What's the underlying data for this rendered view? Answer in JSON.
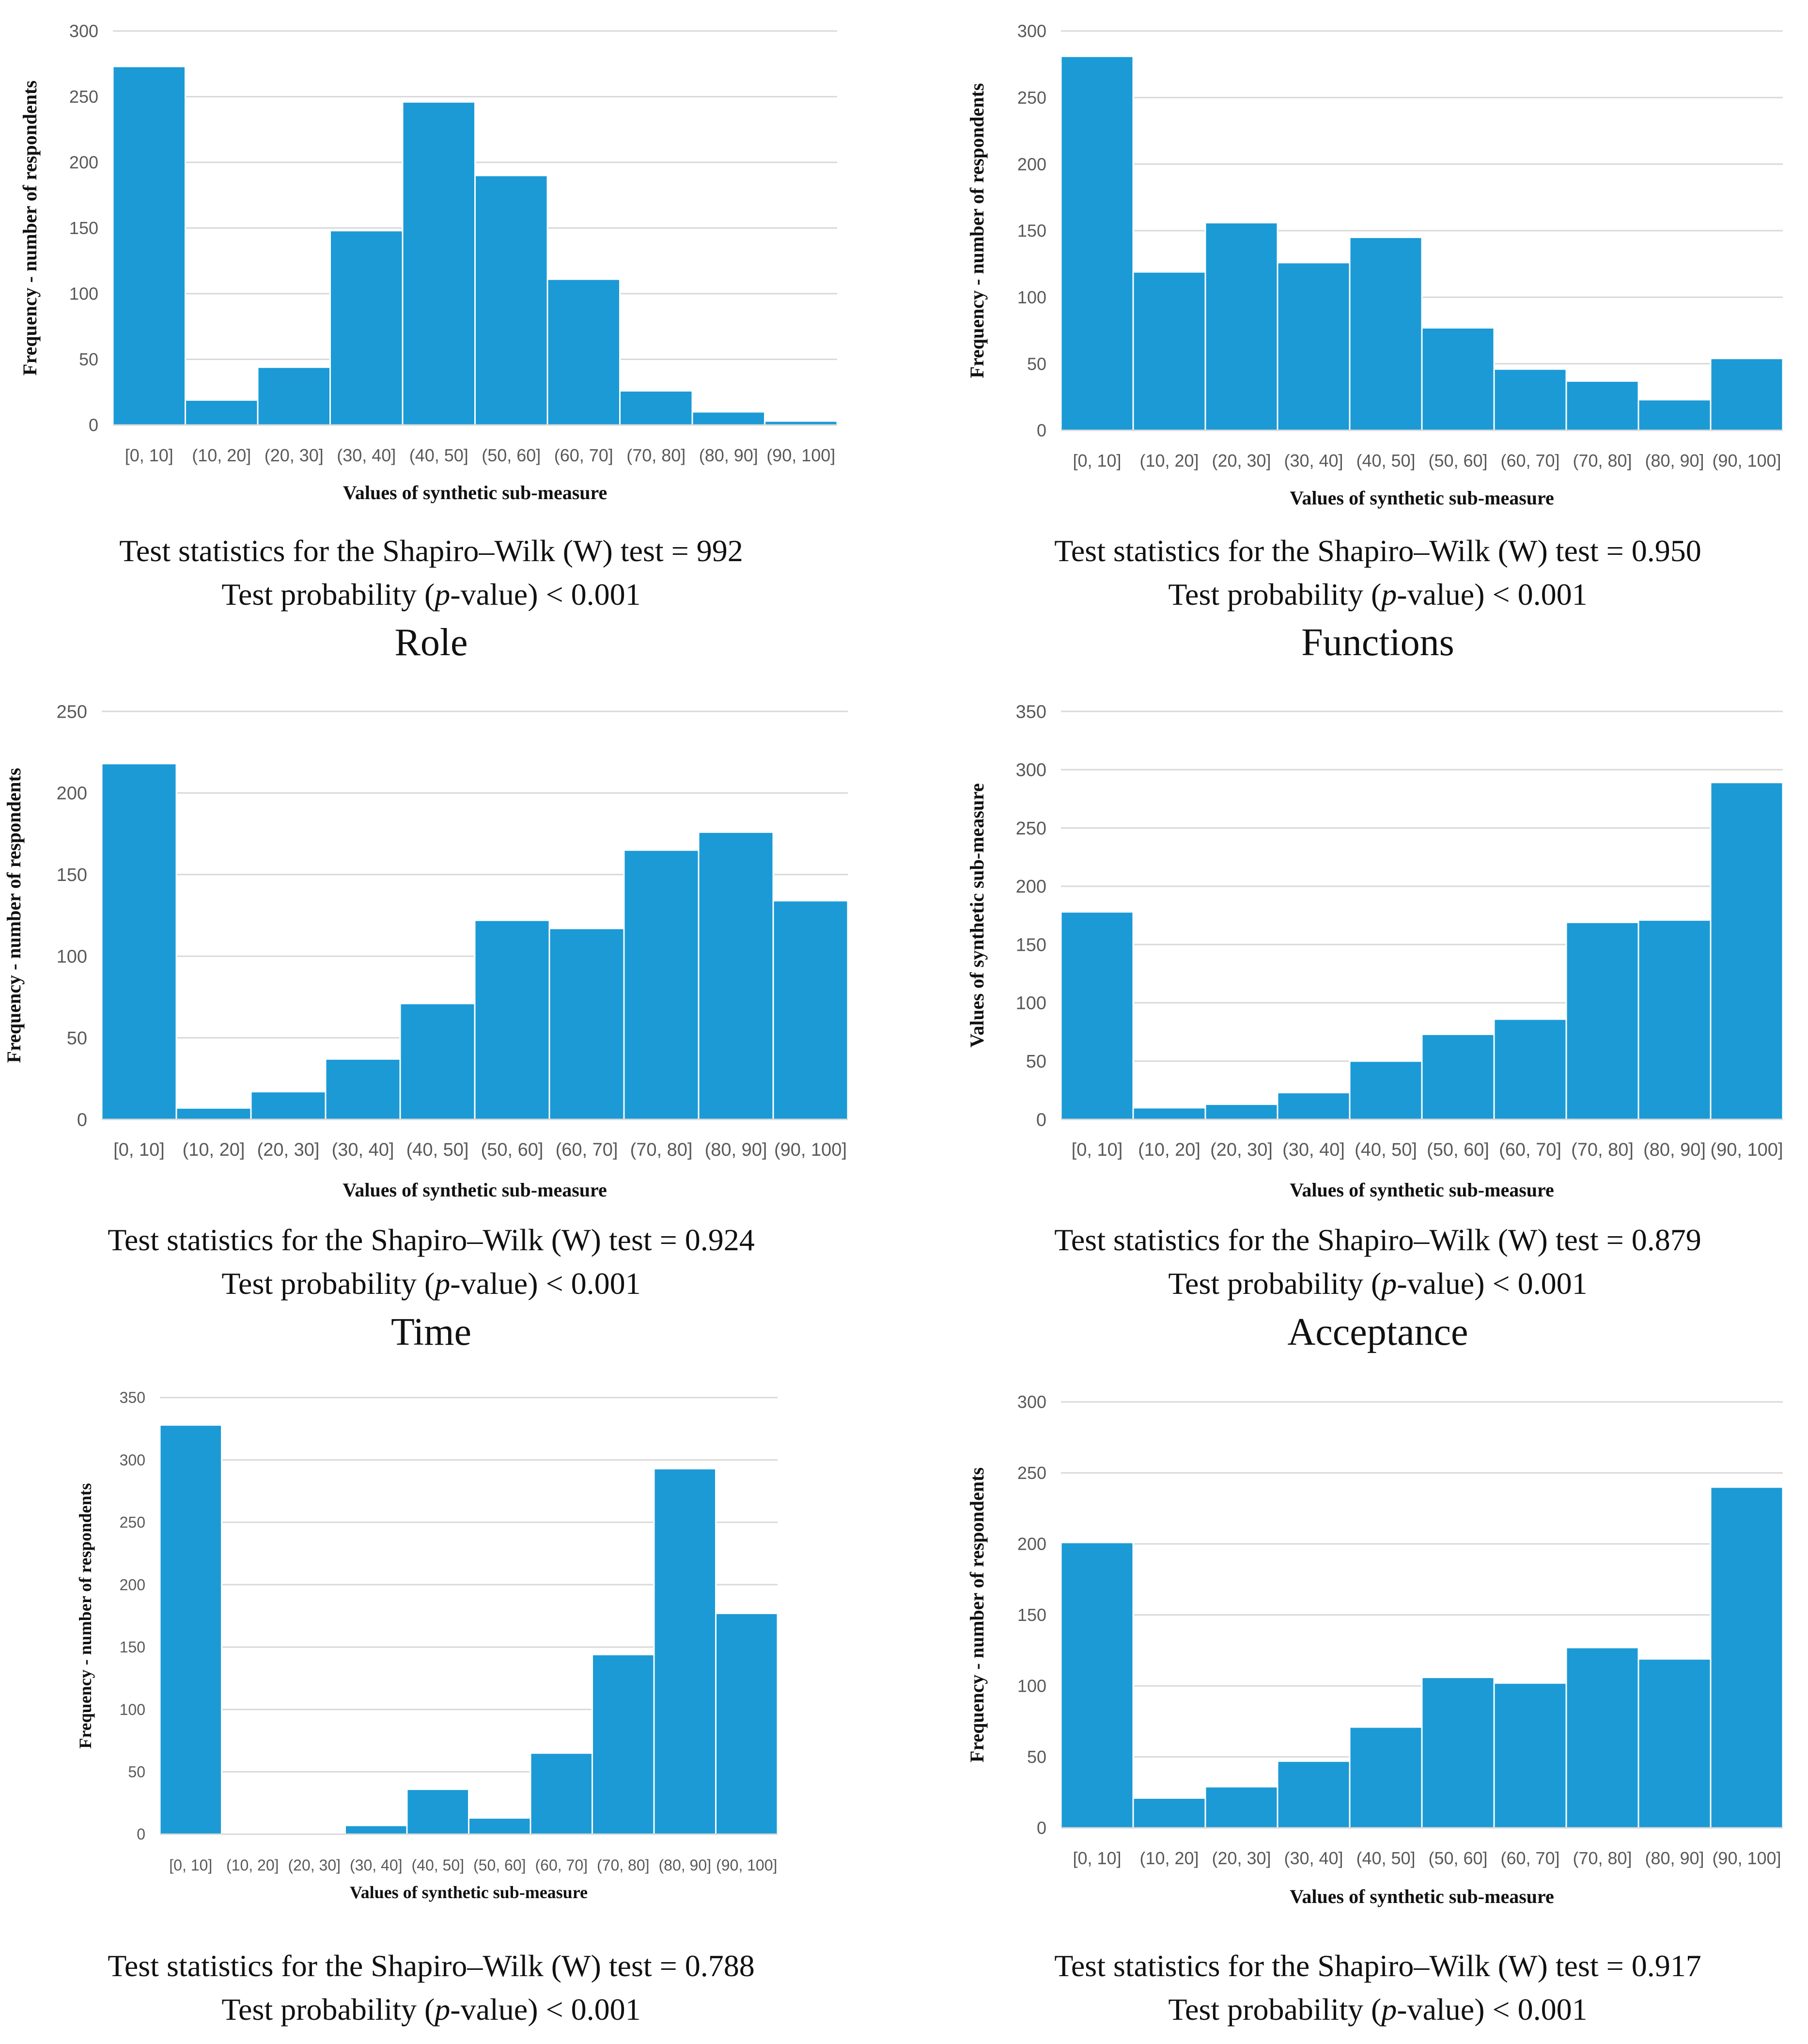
{
  "chart_data": [
    {
      "type": "bar",
      "title": "",
      "categories": [
        "[0, 10]",
        "(10, 20]",
        "(20, 30]",
        "(30, 40]",
        "(40, 50]",
        "(50, 60]",
        "(60, 70]",
        "(70, 80]",
        "(80, 90]",
        "(90, 100]"
      ],
      "values": [
        273,
        19,
        44,
        148,
        246,
        190,
        111,
        26,
        10,
        3
      ],
      "xlabel": "Values of synthetic sub-measure",
      "ylabel": "Frequency - number of respondents",
      "ylim": [
        0,
        300
      ],
      "ytick_step": 50,
      "color": "#1b9ad6",
      "stat_w_prefix": "Test statistics for the Shapiro–Wilk (W) test = ",
      "stat_w": "992",
      "stat_p_prefix": "Test probability (",
      "stat_p_var": "p",
      "stat_p_suffix": "-value) < 0.001",
      "caption": "Role"
    },
    {
      "type": "bar",
      "title": "",
      "categories": [
        "[0, 10]",
        "(10, 20]",
        "(20, 30]",
        "(30, 40]",
        "(40, 50]",
        "(50, 60]",
        "(60, 70]",
        "(70, 80]",
        "(80, 90]",
        "(90, 100]"
      ],
      "values": [
        281,
        119,
        156,
        126,
        145,
        77,
        46,
        37,
        23,
        54
      ],
      "xlabel": "Values of synthetic sub-measure",
      "ylabel": "Frequency - number of respondents",
      "ylim": [
        0,
        300
      ],
      "ytick_step": 50,
      "color": "#1b9ad6",
      "stat_w_prefix": "Test statistics for the Shapiro–Wilk (W) test = ",
      "stat_w": "0.950",
      "stat_p_prefix": "Test probability (",
      "stat_p_var": "p",
      "stat_p_suffix": "-value) < 0.001",
      "caption": "Functions"
    },
    {
      "type": "bar",
      "title": "",
      "categories": [
        "[0, 10]",
        "(10, 20]",
        "(20, 30]",
        "(30, 40]",
        "(40, 50]",
        "(50, 60]",
        "(60, 70]",
        "(70, 80]",
        "(80, 90]",
        "(90, 100]"
      ],
      "values": [
        218,
        7,
        17,
        37,
        71,
        122,
        117,
        165,
        176,
        134
      ],
      "xlabel": "Values of synthetic sub-measure",
      "ylabel": "Frequency - number of respondents",
      "ylim": [
        0,
        250
      ],
      "ytick_step": 50,
      "color": "#1b9ad6",
      "stat_w_prefix": "Test statistics for the Shapiro–Wilk (W) test = ",
      "stat_w": "0.924",
      "stat_p_prefix": "Test probability (",
      "stat_p_var": "p",
      "stat_p_suffix": "-value) < 0.001",
      "caption": "Time"
    },
    {
      "type": "bar",
      "title": "",
      "categories": [
        "[0, 10]",
        "(10, 20]",
        "(20, 30]",
        "(30, 40]",
        "(40, 50]",
        "(50, 60]",
        "(60, 70]",
        "(70, 80]",
        "(80, 90]",
        "(90, 100]"
      ],
      "values": [
        178,
        10,
        13,
        23,
        50,
        73,
        86,
        169,
        171,
        289
      ],
      "xlabel": "Values of synthetic sub-measure",
      "ylabel": "Values of synthetic sub-measure",
      "ylim": [
        0,
        350
      ],
      "ytick_step": 50,
      "color": "#1b9ad6",
      "stat_w_prefix": "Test statistics for the Shapiro–Wilk (W) test = ",
      "stat_w": "0.879",
      "stat_p_prefix": "Test probability (",
      "stat_p_var": "p",
      "stat_p_suffix": "-value) < 0.001",
      "caption": "Acceptance"
    },
    {
      "type": "bar",
      "title": "",
      "categories": [
        "[0, 10]",
        "(10, 20]",
        "(20, 30]",
        "(30, 40]",
        "(40, 50]",
        "(50, 60]",
        "(60, 70]",
        "(70, 80]",
        "(80, 90]",
        "(90, 100]"
      ],
      "values": [
        328,
        1,
        0,
        7,
        36,
        13,
        65,
        144,
        293,
        177
      ],
      "xlabel": "Values of synthetic sub-measure",
      "ylabel": "Frequency - number of respondents",
      "ylim": [
        0,
        350
      ],
      "ytick_step": 50,
      "color": "#1b9ad6",
      "stat_w_prefix": "Test statistics for the Shapiro–Wilk (W) test = ",
      "stat_w": "0.788",
      "stat_p_prefix": "Test probability (",
      "stat_p_var": "p",
      "stat_p_suffix": "-value) < 0.001",
      "caption": ""
    },
    {
      "type": "bar",
      "title": "",
      "categories": [
        "[0, 10]",
        "(10, 20]",
        "(20, 30]",
        "(30, 40]",
        "(40, 50]",
        "(50, 60]",
        "(60, 70]",
        "(70, 80]",
        "(80, 90]",
        "(90, 100]"
      ],
      "values": [
        201,
        21,
        29,
        47,
        71,
        106,
        102,
        127,
        119,
        240
      ],
      "xlabel": "Values of synthetic sub-measure",
      "ylabel": "Frequency - number of respondents",
      "ylim": [
        0,
        300
      ],
      "ytick_step": 50,
      "color": "#1b9ad6",
      "stat_w_prefix": "Test statistics for the Shapiro–Wilk (W) test = ",
      "stat_w": "0.917",
      "stat_p_prefix": "Test probability (",
      "stat_p_var": "p",
      "stat_p_suffix": "-value) < 0.001",
      "caption": ""
    }
  ]
}
